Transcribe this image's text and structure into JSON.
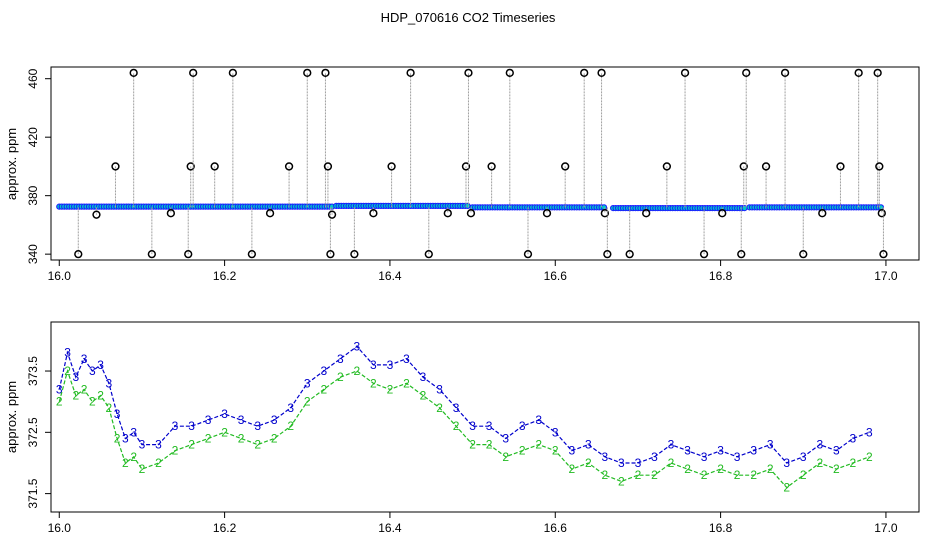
{
  "title": "HDP_070616  CO2 Timeseries",
  "colors": {
    "points": "#000000",
    "lines": "#a0a0a0",
    "baseline": "#1a1aff",
    "baseline_fill": "#00c8c8",
    "series3": "#0000cc",
    "series2": "#22bb22"
  },
  "chart_data": [
    {
      "type": "scatter",
      "ylabel": "approx. ppm",
      "xlim": [
        15.99,
        17.04
      ],
      "ylim": [
        336,
        468
      ],
      "x_ticks": [
        "16.0",
        "16.2",
        "16.4",
        "16.6",
        "16.8",
        "17.0"
      ],
      "y_ticks": [
        "340",
        "380",
        "420",
        "460"
      ],
      "baseline_segments": [
        {
          "x": [
            16.0,
            16.33
          ],
          "y": 372.5
        },
        {
          "x": [
            16.335,
            16.495
          ],
          "y": 373.0
        },
        {
          "x": [
            16.5,
            16.66
          ],
          "y": 372.0
        },
        {
          "x": [
            16.67,
            16.83
          ],
          "y": 371.5
        },
        {
          "x": [
            16.835,
            16.995
          ],
          "y": 372.0
        }
      ],
      "spikes": [
        {
          "x": 16.023,
          "y": 340
        },
        {
          "x": 16.045,
          "y": 367
        },
        {
          "x": 16.068,
          "y": 400
        },
        {
          "x": 16.09,
          "y": 464
        },
        {
          "x": 16.112,
          "y": 340
        },
        {
          "x": 16.135,
          "y": 368
        },
        {
          "x": 16.156,
          "y": 340
        },
        {
          "x": 16.159,
          "y": 400
        },
        {
          "x": 16.162,
          "y": 464
        },
        {
          "x": 16.188,
          "y": 400
        },
        {
          "x": 16.21,
          "y": 464
        },
        {
          "x": 16.233,
          "y": 340
        },
        {
          "x": 16.255,
          "y": 368
        },
        {
          "x": 16.278,
          "y": 400
        },
        {
          "x": 16.3,
          "y": 464
        },
        {
          "x": 16.322,
          "y": 464
        },
        {
          "x": 16.325,
          "y": 400
        },
        {
          "x": 16.328,
          "y": 340
        },
        {
          "x": 16.33,
          "y": 367
        },
        {
          "x": 16.357,
          "y": 340
        },
        {
          "x": 16.38,
          "y": 368
        },
        {
          "x": 16.402,
          "y": 400
        },
        {
          "x": 16.425,
          "y": 464
        },
        {
          "x": 16.447,
          "y": 340
        },
        {
          "x": 16.47,
          "y": 368
        },
        {
          "x": 16.492,
          "y": 400
        },
        {
          "x": 16.495,
          "y": 464
        },
        {
          "x": 16.498,
          "y": 368
        },
        {
          "x": 16.523,
          "y": 400
        },
        {
          "x": 16.545,
          "y": 464
        },
        {
          "x": 16.567,
          "y": 340
        },
        {
          "x": 16.59,
          "y": 368
        },
        {
          "x": 16.612,
          "y": 400
        },
        {
          "x": 16.635,
          "y": 464
        },
        {
          "x": 16.656,
          "y": 464
        },
        {
          "x": 16.66,
          "y": 368
        },
        {
          "x": 16.663,
          "y": 340
        },
        {
          "x": 16.69,
          "y": 340
        },
        {
          "x": 16.71,
          "y": 368
        },
        {
          "x": 16.735,
          "y": 400
        },
        {
          "x": 16.757,
          "y": 464
        },
        {
          "x": 16.78,
          "y": 340
        },
        {
          "x": 16.802,
          "y": 368
        },
        {
          "x": 16.825,
          "y": 340
        },
        {
          "x": 16.828,
          "y": 400
        },
        {
          "x": 16.831,
          "y": 464
        },
        {
          "x": 16.855,
          "y": 400
        },
        {
          "x": 16.878,
          "y": 464
        },
        {
          "x": 16.9,
          "y": 340
        },
        {
          "x": 16.923,
          "y": 368
        },
        {
          "x": 16.945,
          "y": 400
        },
        {
          "x": 16.967,
          "y": 464
        },
        {
          "x": 16.99,
          "y": 464
        },
        {
          "x": 16.992,
          "y": 400
        },
        {
          "x": 16.995,
          "y": 368
        },
        {
          "x": 16.997,
          "y": 340
        }
      ]
    },
    {
      "type": "line",
      "ylabel": "approx. ppm",
      "xlim": [
        15.99,
        17.04
      ],
      "ylim": [
        371.2,
        374.3
      ],
      "x_ticks": [
        "16.0",
        "16.2",
        "16.4",
        "16.6",
        "16.8",
        "17.0"
      ],
      "y_ticks": [
        "371.5",
        "372.5",
        "373.5"
      ],
      "series": [
        {
          "marker": "3",
          "x": [
            16.0,
            16.01,
            16.02,
            16.03,
            16.04,
            16.05,
            16.06,
            16.07,
            16.08,
            16.09,
            16.1,
            16.12,
            16.14,
            16.16,
            16.18,
            16.2,
            16.22,
            16.24,
            16.26,
            16.28,
            16.3,
            16.32,
            16.34,
            16.36,
            16.38,
            16.4,
            16.42,
            16.44,
            16.46,
            16.48,
            16.5,
            16.52,
            16.54,
            16.56,
            16.58,
            16.6,
            16.62,
            16.64,
            16.66,
            16.68,
            16.7,
            16.72,
            16.74,
            16.76,
            16.78,
            16.8,
            16.82,
            16.84,
            16.86,
            16.88,
            16.9,
            16.92,
            16.94,
            16.96,
            16.98
          ],
          "y": [
            373.2,
            373.8,
            373.4,
            373.7,
            373.5,
            373.6,
            373.3,
            372.8,
            372.4,
            372.5,
            372.3,
            372.3,
            372.6,
            372.6,
            372.7,
            372.8,
            372.7,
            372.6,
            372.7,
            372.9,
            373.3,
            373.5,
            373.7,
            373.9,
            373.6,
            373.6,
            373.7,
            373.4,
            373.2,
            372.9,
            372.6,
            372.6,
            372.4,
            372.6,
            372.7,
            372.5,
            372.2,
            372.3,
            372.1,
            372.0,
            372.0,
            372.1,
            372.3,
            372.2,
            372.1,
            372.2,
            372.1,
            372.2,
            372.3,
            372.0,
            372.1,
            372.3,
            372.2,
            372.4,
            372.5
          ]
        },
        {
          "marker": "2",
          "x": [
            16.0,
            16.01,
            16.02,
            16.03,
            16.04,
            16.05,
            16.06,
            16.07,
            16.08,
            16.09,
            16.1,
            16.12,
            16.14,
            16.16,
            16.18,
            16.2,
            16.22,
            16.24,
            16.26,
            16.28,
            16.3,
            16.32,
            16.34,
            16.36,
            16.38,
            16.4,
            16.42,
            16.44,
            16.46,
            16.48,
            16.5,
            16.52,
            16.54,
            16.56,
            16.58,
            16.6,
            16.62,
            16.64,
            16.66,
            16.68,
            16.7,
            16.72,
            16.74,
            16.76,
            16.78,
            16.8,
            16.82,
            16.84,
            16.86,
            16.88,
            16.9,
            16.92,
            16.94,
            16.96,
            16.98
          ],
          "y": [
            373.0,
            373.5,
            373.1,
            373.2,
            373.0,
            373.1,
            372.9,
            372.4,
            372.0,
            372.1,
            371.9,
            372.0,
            372.2,
            372.3,
            372.4,
            372.5,
            372.4,
            372.3,
            372.4,
            372.6,
            373.0,
            373.2,
            373.4,
            373.5,
            373.3,
            373.2,
            373.3,
            373.1,
            372.9,
            372.6,
            372.3,
            372.3,
            372.1,
            372.2,
            372.3,
            372.2,
            371.9,
            372.0,
            371.8,
            371.7,
            371.8,
            371.8,
            372.0,
            371.9,
            371.8,
            371.9,
            371.8,
            371.8,
            371.9,
            371.6,
            371.8,
            372.0,
            371.9,
            372.0,
            372.1
          ]
        }
      ]
    }
  ]
}
